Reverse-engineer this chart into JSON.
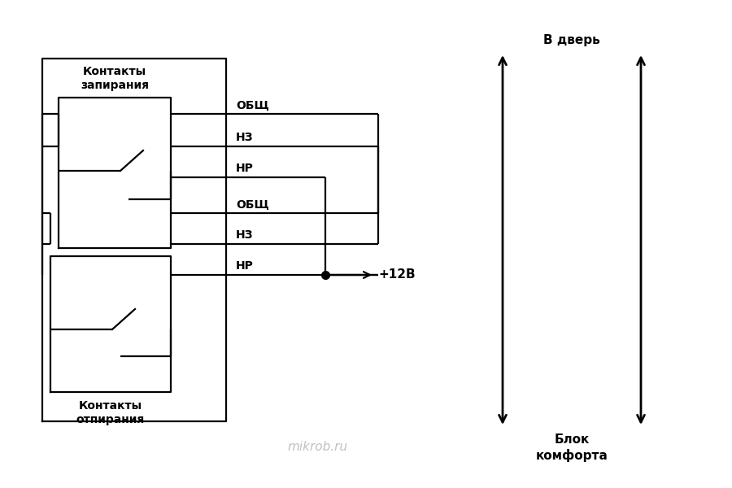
{
  "bg_color": "#ffffff",
  "line_color": "#000000",
  "watermark": "mikrob.ru",
  "watermark_color": "#c0c0c0",
  "label_zapirania": "Контакты\nзапирания",
  "label_otpirania": "Контакты\nотпирания",
  "label_obsh": "ОБЩ",
  "label_nz": "НЗ",
  "label_nr": "НР",
  "label_12v": "+12В",
  "label_v_dver": "В дверь",
  "label_blok": "Блок\nкомфорта",
  "lw": 1.6,
  "arrow_lw": 2.0,
  "arrow_ms": 16
}
